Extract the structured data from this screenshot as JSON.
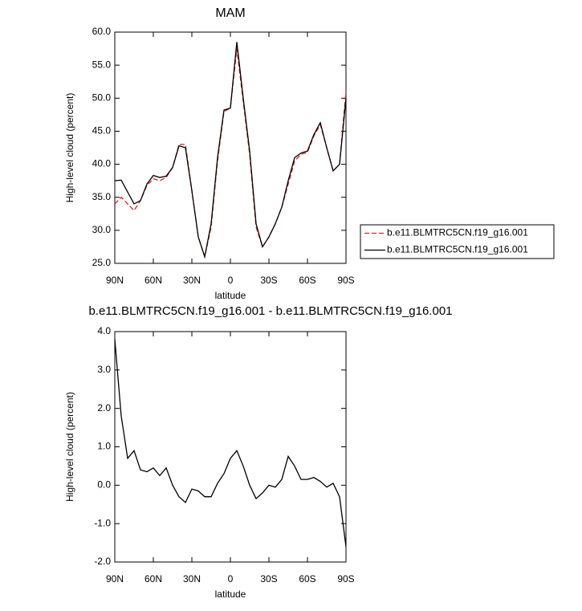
{
  "chart_data": [
    {
      "type": "line",
      "title": "MAM",
      "xlabel": "latitude",
      "ylabel": "High-level cloud (percent)",
      "x": [
        90,
        85,
        80,
        75,
        70,
        65,
        60,
        55,
        50,
        45,
        40,
        35,
        30,
        25,
        20,
        15,
        10,
        5,
        0,
        -5,
        -10,
        -15,
        -20,
        -25,
        -30,
        -35,
        -40,
        -45,
        -50,
        -55,
        -60,
        -65,
        -70,
        -75,
        -80,
        -85,
        -90
      ],
      "xlim": [
        90,
        -90
      ],
      "xticks": [
        {
          "value": 90,
          "label": "90N"
        },
        {
          "value": 60,
          "label": "60N"
        },
        {
          "value": 30,
          "label": "30N"
        },
        0,
        {
          "value": -30,
          "label": "30S"
        },
        {
          "value": -60,
          "label": "60S"
        },
        {
          "value": -90,
          "label": "90S"
        }
      ],
      "ylim": [
        25,
        60
      ],
      "yticks": [
        {
          "value": 25,
          "label": "25.0"
        },
        {
          "value": 30,
          "label": "30.0"
        },
        {
          "value": 35,
          "label": "35.0"
        },
        {
          "value": 40,
          "label": "40.0"
        },
        {
          "value": 45,
          "label": "45.0"
        },
        {
          "value": 50,
          "label": "50.0"
        },
        {
          "value": 55,
          "label": "55.0"
        },
        {
          "value": 60,
          "label": "60.0"
        }
      ],
      "legend": "right",
      "series": [
        {
          "name": "b.e11.BLMTRC5CN.f19_g16.001",
          "color": "#e0201c",
          "dash": true,
          "values": [
            34.0,
            35.0,
            34.0,
            33.0,
            34.5,
            36.8,
            37.8,
            37.5,
            38.0,
            39.5,
            43.0,
            43.0,
            36.0,
            29.0,
            26.0,
            30.5,
            40.5,
            48.0,
            48.5,
            57.5,
            49.5,
            41.5,
            30.5,
            27.5,
            29.0,
            31.0,
            33.5,
            37.0,
            40.5,
            41.5,
            41.8,
            44.3,
            46.0,
            42.5,
            39.0,
            40.0,
            51.0
          ]
        },
        {
          "name": "b.e11.BLMTRC5CN.f19_g16.001",
          "color": "#000000",
          "dash": false,
          "values": [
            37.5,
            37.6,
            35.8,
            34.0,
            34.5,
            37.0,
            38.3,
            38.0,
            38.2,
            39.5,
            42.8,
            42.5,
            36.0,
            29.0,
            26.0,
            31.0,
            41.0,
            48.2,
            48.5,
            58.5,
            50.0,
            42.0,
            31.0,
            27.5,
            29.0,
            31.0,
            33.5,
            37.5,
            41.0,
            41.7,
            42.0,
            44.5,
            46.3,
            42.5,
            39.0,
            40.0,
            50.0
          ]
        }
      ]
    },
    {
      "type": "line",
      "title": "b.e11.BLMTRC5CN.f19_g16.001 - b.e11.BLMTRC5CN.f19_g16.001",
      "xlabel": "latitude",
      "ylabel": "High-level cloud (percent)",
      "x": [
        90,
        85,
        80,
        75,
        70,
        65,
        60,
        55,
        50,
        45,
        40,
        35,
        30,
        25,
        20,
        15,
        10,
        5,
        0,
        -5,
        -10,
        -15,
        -20,
        -25,
        -30,
        -35,
        -40,
        -45,
        -50,
        -55,
        -60,
        -65,
        -70,
        -75,
        -80,
        -85,
        -90
      ],
      "xlim": [
        90,
        -90
      ],
      "xticks": [
        {
          "value": 90,
          "label": "90N"
        },
        {
          "value": 60,
          "label": "60N"
        },
        {
          "value": 30,
          "label": "30N"
        },
        0,
        {
          "value": -30,
          "label": "30S"
        },
        {
          "value": -60,
          "label": "60S"
        },
        {
          "value": -90,
          "label": "90S"
        }
      ],
      "ylim": [
        -2,
        4
      ],
      "yticks": [
        {
          "value": -2,
          "label": "-2.0"
        },
        {
          "value": -1,
          "label": "-1.0"
        },
        {
          "value": 0,
          "label": "0.0"
        },
        {
          "value": 1,
          "label": "1.0"
        },
        {
          "value": 2,
          "label": "2.0"
        },
        {
          "value": 3,
          "label": "3.0"
        },
        {
          "value": 4,
          "label": "4.0"
        }
      ],
      "color": "#000000",
      "values": [
        3.8,
        1.8,
        0.7,
        0.9,
        0.4,
        0.35,
        0.45,
        0.25,
        0.45,
        0.0,
        -0.3,
        -0.45,
        -0.1,
        -0.15,
        -0.3,
        -0.3,
        0.05,
        0.3,
        0.7,
        0.9,
        0.5,
        0.0,
        -0.35,
        -0.2,
        0.0,
        -0.05,
        0.15,
        0.75,
        0.5,
        0.15,
        0.15,
        0.2,
        0.1,
        -0.05,
        0.05,
        -0.3,
        -1.6
      ]
    }
  ]
}
